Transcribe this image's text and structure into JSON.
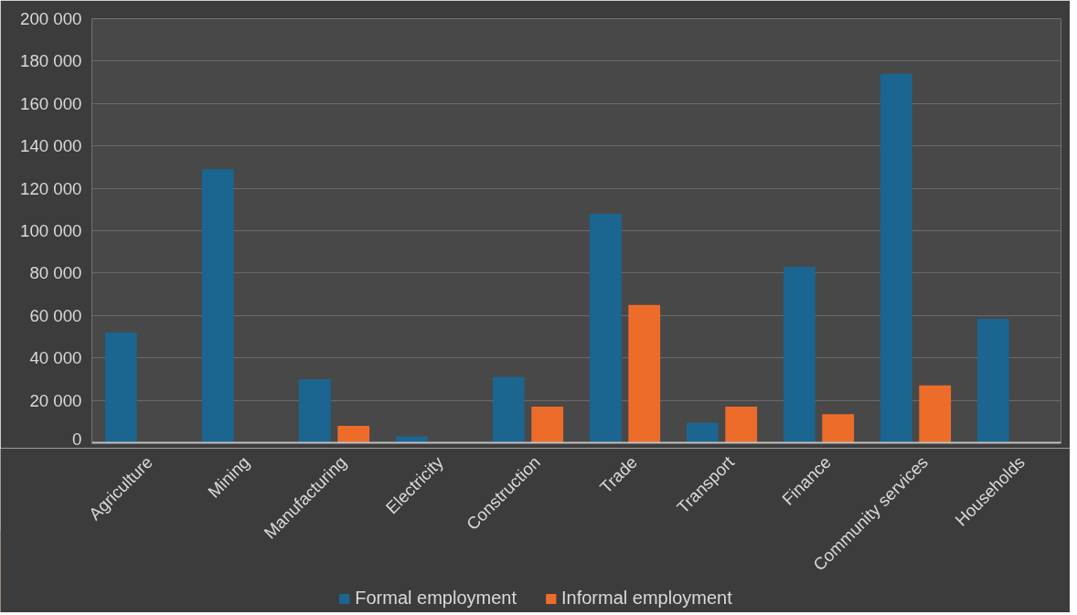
{
  "chart_data": {
    "type": "bar",
    "categories": [
      "Agriculture",
      "Mining",
      "Manufacturing",
      "Electricity",
      "Construction",
      "Trade",
      "Transport",
      "Finance",
      "Community services",
      "Households"
    ],
    "series": [
      {
        "name": "Formal employment",
        "color": "#1a6690",
        "values": [
          52000,
          129000,
          30000,
          3000,
          31000,
          108000,
          9500,
          83000,
          174000,
          58500
        ]
      },
      {
        "name": "Informal employment",
        "color": "#ee6c2a",
        "values": [
          null,
          null,
          8000,
          null,
          17000,
          65000,
          17000,
          13500,
          27000,
          null
        ]
      }
    ],
    "ylim": [
      0,
      200000
    ],
    "yticks": [
      {
        "value": 0,
        "label": "0"
      },
      {
        "value": 20000,
        "label": "20 000"
      },
      {
        "value": 40000,
        "label": "40 000"
      },
      {
        "value": 60000,
        "label": "60 000"
      },
      {
        "value": 80000,
        "label": "80 000"
      },
      {
        "value": 100000,
        "label": "100 000"
      },
      {
        "value": 120000,
        "label": "120 000"
      },
      {
        "value": 140000,
        "label": "140 000"
      },
      {
        "value": 160000,
        "label": "160 000"
      },
      {
        "value": 180000,
        "label": "180 000"
      },
      {
        "value": 200000,
        "label": "200 000"
      }
    ],
    "grid": "y",
    "legend": "bottom"
  }
}
